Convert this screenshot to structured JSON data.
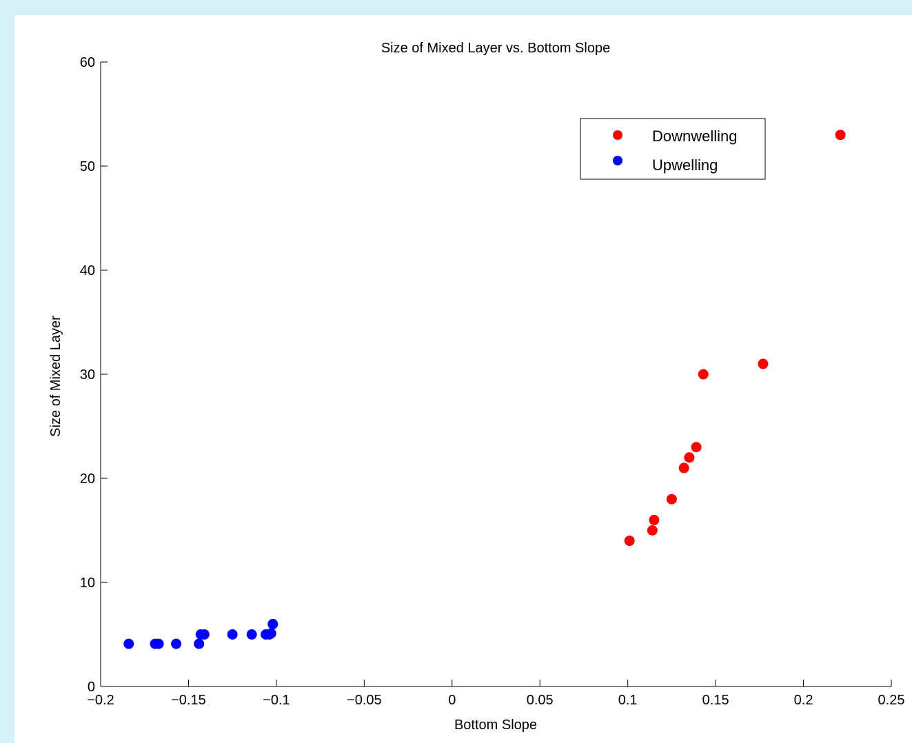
{
  "chart_data": {
    "type": "scatter",
    "title": "Size of Mixed Layer vs. Bottom Slope",
    "xlabel": "Bottom Slope",
    "ylabel": "Size of Mixed Layer",
    "xlim": [
      -0.2,
      0.25
    ],
    "ylim": [
      0,
      60
    ],
    "xticks": [
      -0.2,
      -0.15,
      -0.1,
      -0.05,
      0,
      0.05,
      0.1,
      0.15,
      0.2,
      0.25
    ],
    "xtick_labels": [
      "−0.2",
      "−0.15",
      "−0.1",
      "−0.05",
      "0",
      "0.05",
      "0.1",
      "0.15",
      "0.2",
      "0.25"
    ],
    "yticks": [
      0,
      10,
      20,
      30,
      40,
      50,
      60
    ],
    "ytick_labels": [
      "0",
      "10",
      "20",
      "30",
      "40",
      "50",
      "60"
    ],
    "grid": false,
    "legend": "top-right",
    "series": [
      {
        "name": "Downwelling",
        "color": "#ff0000",
        "points": [
          [
            0.101,
            14
          ],
          [
            0.114,
            15
          ],
          [
            0.115,
            16
          ],
          [
            0.125,
            18
          ],
          [
            0.132,
            21
          ],
          [
            0.135,
            22
          ],
          [
            0.139,
            23
          ],
          [
            0.143,
            30
          ],
          [
            0.177,
            31
          ],
          [
            0.221,
            53
          ]
        ]
      },
      {
        "name": "Upwelling",
        "color": "#0000ff",
        "points": [
          [
            -0.184,
            4.1
          ],
          [
            -0.169,
            4.1
          ],
          [
            -0.167,
            4.1
          ],
          [
            -0.157,
            4.1
          ],
          [
            -0.144,
            4.1
          ],
          [
            -0.143,
            5
          ],
          [
            -0.141,
            5
          ],
          [
            -0.125,
            5
          ],
          [
            -0.114,
            5
          ],
          [
            -0.106,
            5
          ],
          [
            -0.104,
            5
          ],
          [
            -0.103,
            5.1
          ],
          [
            -0.102,
            6
          ]
        ]
      }
    ]
  }
}
